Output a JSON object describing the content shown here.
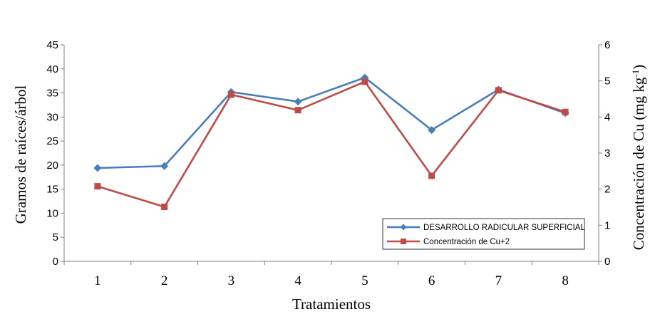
{
  "chart_data": {
    "type": "line",
    "categories": [
      "1",
      "2",
      "3",
      "4",
      "5",
      "6",
      "7",
      "8"
    ],
    "xlabel": "Tratamientos",
    "ylabel": "Gramos de raíces/árbol",
    "ylabel_right": "Concentración de Cu (mg kg-1)",
    "ylabel_right_main": "Concentración de Cu (mg kg",
    "ylabel_right_sup": "-1",
    "ylabel_right_close": ")",
    "ylim": [
      0,
      45
    ],
    "ylim_right": [
      0,
      6
    ],
    "yticks": [
      "0",
      "5",
      "10",
      "15",
      "20",
      "25",
      "30",
      "35",
      "40",
      "45"
    ],
    "yticks_right": [
      "0",
      "1",
      "2",
      "3",
      "4",
      "5",
      "6"
    ],
    "grid": false,
    "legend_position": "bottom-right",
    "series": [
      {
        "name": "DESARROLLO RADICULAR SUPERFICIAL",
        "axis": "left",
        "color": "#4a7ebb",
        "marker": "diamond",
        "values": [
          19.4,
          19.8,
          35.2,
          33.2,
          38.2,
          27.3,
          35.7,
          30.8
        ]
      },
      {
        "name": "Concentración de Cu+2",
        "axis": "right",
        "color": "#be4b48",
        "marker": "square",
        "values": [
          2.08,
          1.51,
          4.62,
          4.19,
          4.98,
          2.37,
          4.74,
          4.14
        ]
      }
    ]
  }
}
